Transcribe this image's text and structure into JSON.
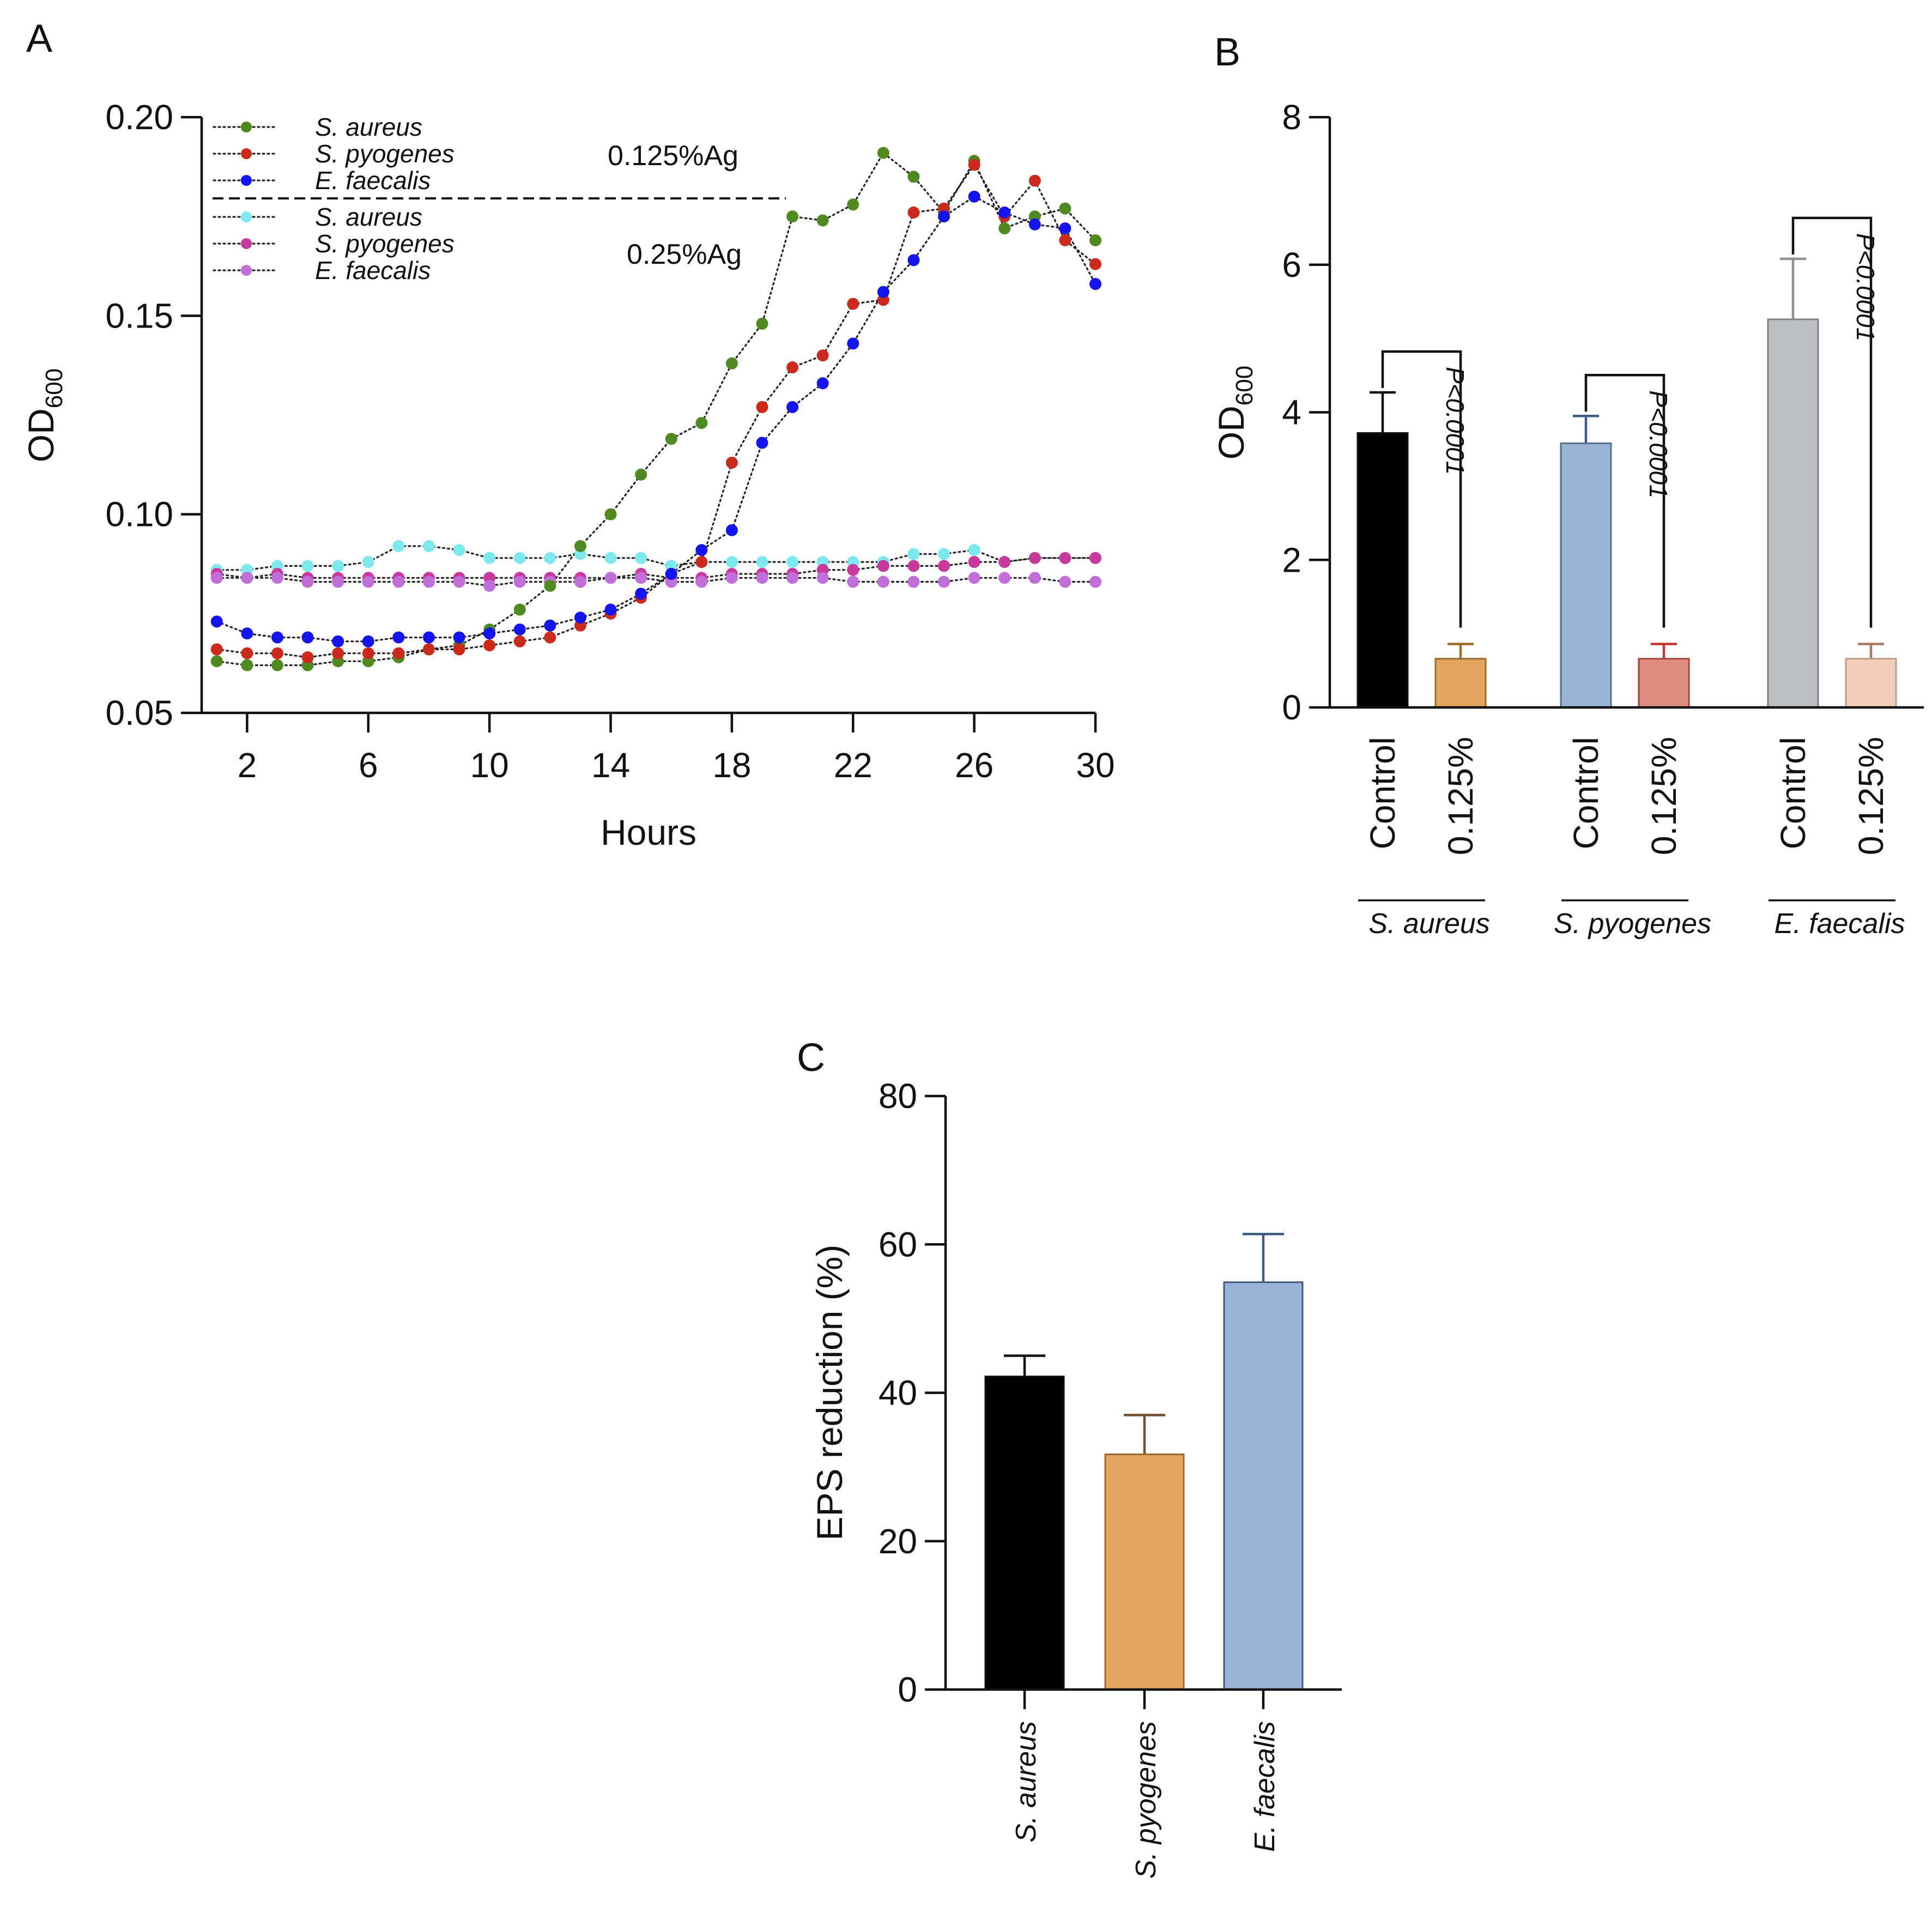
{
  "chart_data": [
    {
      "panel": "A",
      "type": "line",
      "xlabel": "Hours",
      "ylabel": "OD",
      "ylabel_sub": "600",
      "xlim": [
        0.5,
        30
      ],
      "ylim": [
        0.05,
        0.2
      ],
      "xticks": [
        "2",
        "6",
        "10",
        "14",
        "18",
        "22",
        "26",
        "30"
      ],
      "yticks": [
        "0.05",
        "0.10",
        "0.15",
        "0.20"
      ],
      "group_labels": [
        "0.125%Ag",
        "0.25%Ag"
      ],
      "x": [
        1,
        2,
        3,
        4,
        5,
        6,
        7,
        8,
        9,
        10,
        11,
        12,
        13,
        14,
        15,
        16,
        17,
        18,
        19,
        20,
        21,
        22,
        23,
        24,
        25,
        26,
        27,
        28,
        29,
        30
      ],
      "series": [
        {
          "name": "S. aureus",
          "group": "0.125%Ag",
          "color": "#4e8a1f",
          "values": [
            0.063,
            0.062,
            0.062,
            0.062,
            0.063,
            0.063,
            0.064,
            0.066,
            0.067,
            0.071,
            0.076,
            0.082,
            0.092,
            0.1,
            0.11,
            0.119,
            0.123,
            0.138,
            0.148,
            0.175,
            0.174,
            0.178,
            0.191,
            0.185,
            0.176,
            0.189,
            0.172,
            0.175,
            0.177,
            0.169
          ]
        },
        {
          "name": "S. pyogenes",
          "group": "0.125%Ag",
          "color": "#cc2a1c",
          "values": [
            0.066,
            0.065,
            0.065,
            0.064,
            0.065,
            0.065,
            0.065,
            0.066,
            0.066,
            0.067,
            0.068,
            0.069,
            0.072,
            0.075,
            0.079,
            0.085,
            0.088,
            0.113,
            0.127,
            0.137,
            0.14,
            0.153,
            0.154,
            0.176,
            0.177,
            0.188,
            0.175,
            0.184,
            0.169,
            0.163
          ]
        },
        {
          "name": "E. faecalis",
          "group": "0.125%Ag",
          "color": "#1414f0",
          "values": [
            0.073,
            0.07,
            0.069,
            0.069,
            0.068,
            0.068,
            0.069,
            0.069,
            0.069,
            0.07,
            0.071,
            0.072,
            0.074,
            0.076,
            0.08,
            0.085,
            0.091,
            0.096,
            0.118,
            0.127,
            0.133,
            0.143,
            0.156,
            0.164,
            0.175,
            0.18,
            0.176,
            0.173,
            0.172,
            0.158
          ]
        },
        {
          "name": "S. aureus",
          "group": "0.25%Ag",
          "color": "#7de8ee",
          "values": [
            0.086,
            0.086,
            0.087,
            0.087,
            0.087,
            0.088,
            0.092,
            0.092,
            0.091,
            0.089,
            0.089,
            0.089,
            0.09,
            0.089,
            0.089,
            0.087,
            0.088,
            0.088,
            0.088,
            0.088,
            0.088,
            0.088,
            0.088,
            0.09,
            0.09,
            0.091,
            0.088,
            0.089,
            0.089,
            0.089
          ]
        },
        {
          "name": "S. pyogenes",
          "group": "0.25%Ag",
          "color": "#c8399e",
          "values": [
            0.085,
            0.084,
            0.085,
            0.084,
            0.084,
            0.084,
            0.084,
            0.084,
            0.084,
            0.084,
            0.084,
            0.084,
            0.084,
            0.084,
            0.085,
            0.084,
            0.084,
            0.085,
            0.085,
            0.085,
            0.086,
            0.086,
            0.087,
            0.087,
            0.087,
            0.088,
            0.088,
            0.089,
            0.089,
            0.089
          ]
        },
        {
          "name": "E. faecalis",
          "group": "0.25%Ag",
          "color": "#c06fd8",
          "values": [
            0.084,
            0.084,
            0.084,
            0.083,
            0.083,
            0.083,
            0.083,
            0.083,
            0.083,
            0.082,
            0.083,
            0.083,
            0.083,
            0.084,
            0.084,
            0.083,
            0.083,
            0.084,
            0.084,
            0.084,
            0.084,
            0.083,
            0.083,
            0.083,
            0.083,
            0.084,
            0.084,
            0.084,
            0.083,
            0.083
          ]
        }
      ]
    },
    {
      "panel": "B",
      "type": "bar",
      "ylabel": "OD",
      "ylabel_sub": "600",
      "ylim": [
        0,
        8
      ],
      "yticks": [
        "0",
        "2",
        "4",
        "6",
        "8"
      ],
      "groups": [
        {
          "name": "S. aureus",
          "p_value": "P<0.0001",
          "bars": [
            {
              "label": "Control",
              "value": 3.72,
              "error": 0.55,
              "color": "#000000"
            },
            {
              "label": "0.125%",
              "value": 0.66,
              "error": 0.2,
              "color": "#e3a460"
            }
          ]
        },
        {
          "name": "S. pyogenes",
          "p_value": "P<0.0001",
          "bars": [
            {
              "label": "Control",
              "value": 3.58,
              "error": 0.37,
              "color": "#9ab3d6"
            },
            {
              "label": "0.125%",
              "value": 0.66,
              "error": 0.2,
              "color": "#df8b80"
            }
          ]
        },
        {
          "name": "E. faecalis",
          "p_value": "P<0.0001",
          "bars": [
            {
              "label": "Control",
              "value": 5.26,
              "error": 0.82,
              "color": "#bcbfc2"
            },
            {
              "label": "0.125%",
              "value": 0.66,
              "error": 0.2,
              "color": "#f2cdbb"
            }
          ]
        }
      ]
    },
    {
      "panel": "C",
      "type": "bar",
      "ylabel": "EPS reduction (%)",
      "ylim": [
        0,
        80
      ],
      "yticks": [
        "0",
        "20",
        "40",
        "60",
        "80"
      ],
      "categories": [
        "S. aureus",
        "S. pyogenes",
        "E. faecalis"
      ],
      "values": [
        42.2,
        31.7,
        54.9
      ],
      "errors": [
        2.8,
        5.3,
        6.5
      ],
      "colors": [
        "#000000",
        "#e3a460",
        "#9ab3d6"
      ]
    }
  ]
}
